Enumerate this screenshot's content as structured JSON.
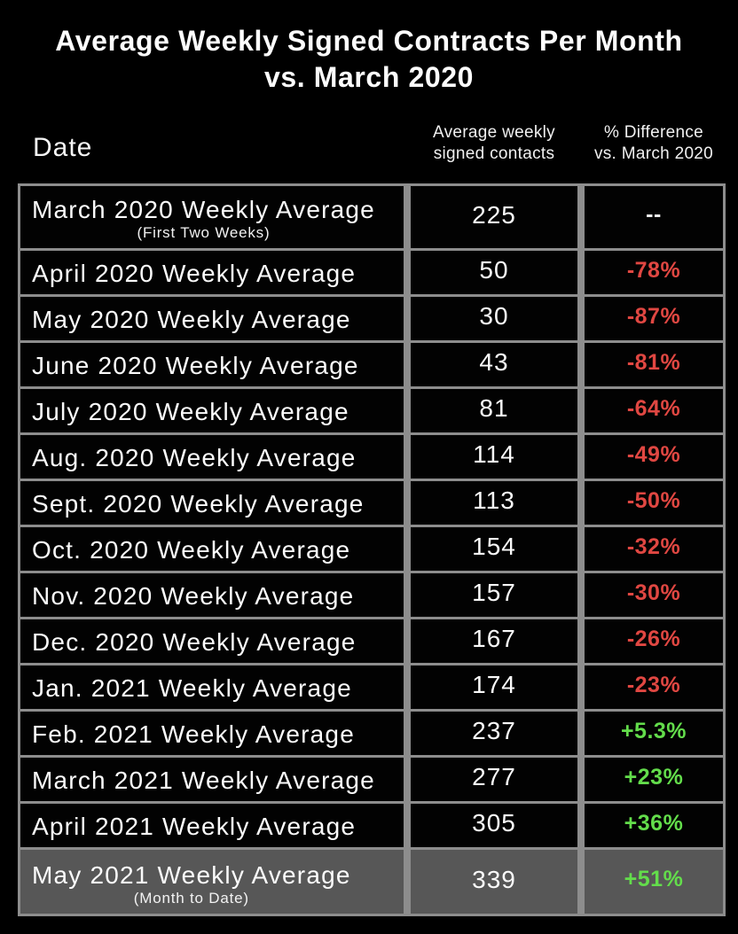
{
  "title": {
    "line1": "Average Weekly Signed Contracts Per Month",
    "line2": "vs. March 2020"
  },
  "header": {
    "date_label": "Date",
    "col2_line1": "Average weekly",
    "col2_line2": "signed contacts",
    "col3_line1": "% Difference",
    "col3_line2": "vs. March 2020"
  },
  "colors": {
    "background": "#000000",
    "border_gray": "#8d8d8d",
    "highlight_row_bg": "#575757",
    "negative": "#e04742",
    "positive": "#63dd4b",
    "text": "#fbfbfb"
  },
  "chart_data": {
    "type": "table",
    "title": "Average Weekly Signed Contracts Per Month vs. March 2020",
    "columns": [
      "Date",
      "Average weekly signed contacts",
      "% Difference vs. March 2020"
    ],
    "rows": [
      {
        "date": "March 2020 Weekly Average",
        "subtitle": "(First Two Weeks)",
        "value": "225",
        "diff": "--",
        "sign": "neutral",
        "highlight": false
      },
      {
        "date": "April 2020 Weekly Average",
        "subtitle": "",
        "value": "50",
        "diff": "-78%",
        "sign": "negative",
        "highlight": false
      },
      {
        "date": "May 2020 Weekly Average",
        "subtitle": "",
        "value": "30",
        "diff": "-87%",
        "sign": "negative",
        "highlight": false
      },
      {
        "date": "June 2020 Weekly Average",
        "subtitle": "",
        "value": "43",
        "diff": "-81%",
        "sign": "negative",
        "highlight": false
      },
      {
        "date": "July 2020 Weekly Average",
        "subtitle": "",
        "value": "81",
        "diff": "-64%",
        "sign": "negative",
        "highlight": false
      },
      {
        "date": "Aug. 2020 Weekly Average",
        "subtitle": "",
        "value": "114",
        "diff": "-49%",
        "sign": "negative",
        "highlight": false
      },
      {
        "date": "Sept. 2020 Weekly Average",
        "subtitle": "",
        "value": "113",
        "diff": "-50%",
        "sign": "negative",
        "highlight": false
      },
      {
        "date": "Oct. 2020 Weekly Average",
        "subtitle": "",
        "value": "154",
        "diff": "-32%",
        "sign": "negative",
        "highlight": false
      },
      {
        "date": "Nov. 2020 Weekly Average",
        "subtitle": "",
        "value": "157",
        "diff": "-30%",
        "sign": "negative",
        "highlight": false
      },
      {
        "date": "Dec. 2020 Weekly Average",
        "subtitle": "",
        "value": "167",
        "diff": "-26%",
        "sign": "negative",
        "highlight": false
      },
      {
        "date": "Jan. 2021 Weekly Average",
        "subtitle": "",
        "value": "174",
        "diff": "-23%",
        "sign": "negative",
        "highlight": false
      },
      {
        "date": "Feb. 2021 Weekly Average",
        "subtitle": "",
        "value": "237",
        "diff": "+5.3%",
        "sign": "positive",
        "highlight": false
      },
      {
        "date": "March 2021 Weekly Average",
        "subtitle": "",
        "value": "277",
        "diff": "+23%",
        "sign": "positive",
        "highlight": false
      },
      {
        "date": "April 2021 Weekly Average",
        "subtitle": "",
        "value": "305",
        "diff": "+36%",
        "sign": "positive",
        "highlight": false
      },
      {
        "date": "May 2021 Weekly Average",
        "subtitle": "(Month to Date)",
        "value": "339",
        "diff": "+51%",
        "sign": "positive",
        "highlight": true
      }
    ]
  }
}
